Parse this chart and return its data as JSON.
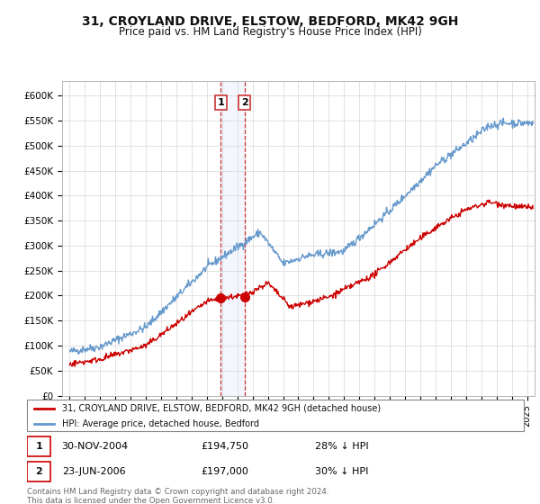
{
  "title": "31, CROYLAND DRIVE, ELSTOW, BEDFORD, MK42 9GH",
  "subtitle": "Price paid vs. HM Land Registry's House Price Index (HPI)",
  "legend_label_red": "31, CROYLAND DRIVE, ELSTOW, BEDFORD, MK42 9GH (detached house)",
  "legend_label_blue": "HPI: Average price, detached house, Bedford",
  "transaction1_date": "30-NOV-2004",
  "transaction1_price": "£194,750",
  "transaction1_hpi": "28% ↓ HPI",
  "transaction2_date": "23-JUN-2006",
  "transaction2_price": "£197,000",
  "transaction2_hpi": "30% ↓ HPI",
  "footer": "Contains HM Land Registry data © Crown copyright and database right 2024.\nThis data is licensed under the Open Government Licence v3.0.",
  "red_color": "#cc0000",
  "blue_color": "#6699cc",
  "marker1_x": 2004.92,
  "marker1_y": 194750,
  "marker2_x": 2006.47,
  "marker2_y": 197000,
  "vline1_x": 2004.92,
  "vline2_x": 2006.47,
  "ylim": [
    0,
    630000
  ],
  "xlim": [
    1994.5,
    2025.5
  ],
  "yticks": [
    0,
    50000,
    100000,
    150000,
    200000,
    250000,
    300000,
    350000,
    400000,
    450000,
    500000,
    550000,
    600000
  ],
  "yticklabels": [
    "£0",
    "£50K",
    "£100K",
    "£150K",
    "£200K",
    "£250K",
    "£300K",
    "£350K",
    "£400K",
    "£450K",
    "£500K",
    "£550K",
    "£600K"
  ],
  "bg_color": "#ffffff",
  "grid_color": "#dddddd"
}
